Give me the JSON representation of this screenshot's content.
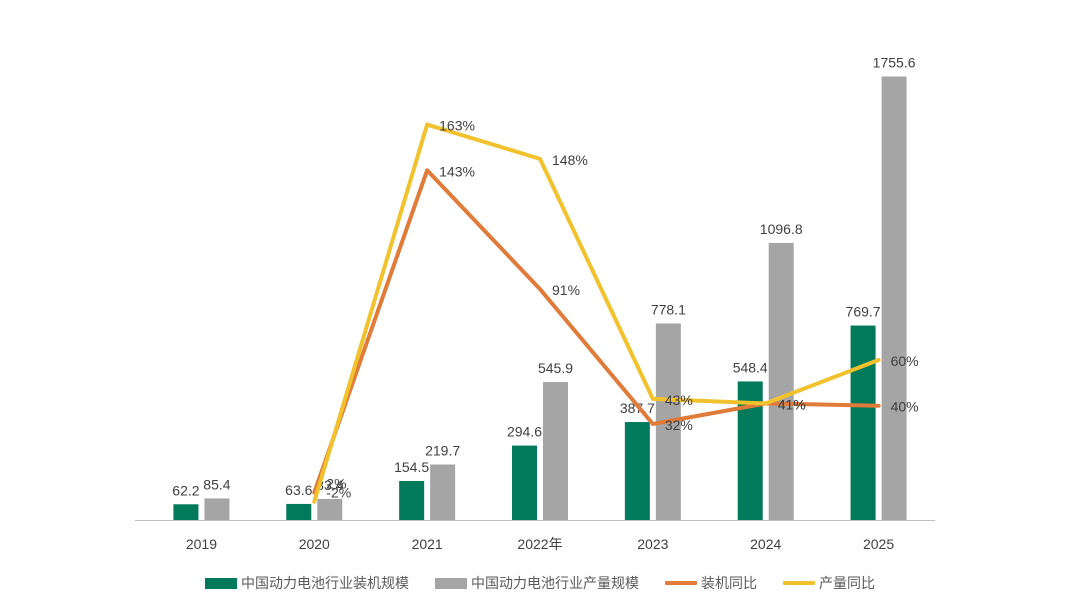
{
  "chart_data": {
    "type": "bar",
    "title": "",
    "xlabel": "",
    "ylabel": "",
    "categories": [
      "2019",
      "2020",
      "2021",
      "2022年",
      "2023",
      "2024",
      "2025"
    ],
    "series": [
      {
        "name": "中国动力电池行业装机规模",
        "kind": "bar",
        "color": "#007A5A",
        "values": [
          62.2,
          63.6,
          154.5,
          294.6,
          387.7,
          548.4,
          769.7
        ],
        "labels": [
          "62.2",
          "63.6",
          "154.5",
          "294.6",
          "387.7",
          "548.4",
          "769.7"
        ]
      },
      {
        "name": "中国动力电池行业产量规模",
        "kind": "bar",
        "color": "#A5A5A5",
        "values": [
          85.4,
          83.4,
          219.7,
          545.9,
          778.1,
          1096.8,
          1755.6
        ],
        "labels": [
          "85.4",
          "83.4",
          "219.7",
          "545.9",
          "778.1",
          "1096.8",
          "1755.6"
        ]
      },
      {
        "name": "装机同比",
        "kind": "line",
        "color": "#E07B39",
        "values": [
          null,
          2,
          143,
          91,
          32,
          41,
          40
        ],
        "labels": [
          null,
          "2%",
          "143%",
          "91%",
          "32%",
          "41%",
          "40%"
        ]
      },
      {
        "name": "产量同比",
        "kind": "line",
        "color": "#F2C12E",
        "values": [
          null,
          -2,
          163,
          148,
          43,
          41,
          60
        ],
        "labels": [
          null,
          "-2%",
          "163%",
          "148%",
          "43%",
          "41%",
          "60%"
        ]
      }
    ],
    "bar_ylim": [
      0,
      1900
    ],
    "line_ylim": [
      -10,
      200
    ],
    "grid": false,
    "legend_position": "bottom"
  },
  "legend": {
    "item1": "中国动力电池行业装机规模",
    "item2": "中国动力电池行业产量规模",
    "item3": "装机同比",
    "item4": "产量同比"
  }
}
